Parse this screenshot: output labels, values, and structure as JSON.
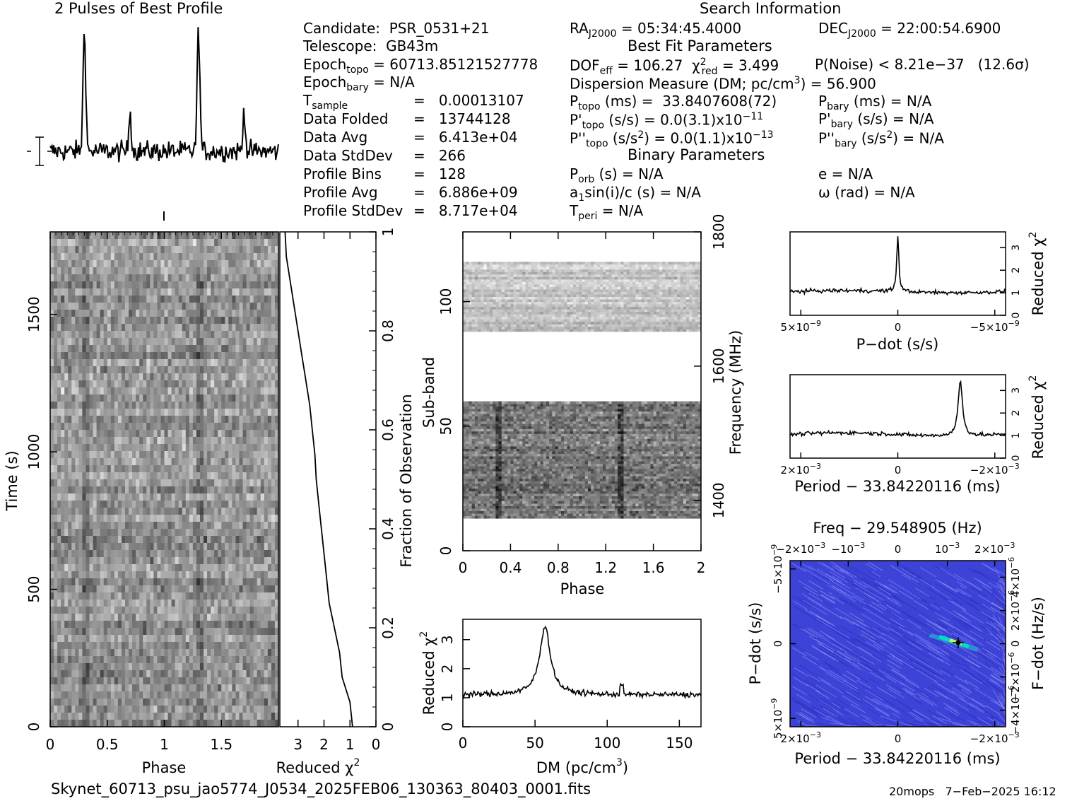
{
  "titles": {
    "profile": "2 Pulses of Best Profile",
    "search": "Search Information",
    "best_fit": "Best Fit Parameters",
    "binary": "Binary Parameters"
  },
  "candidate_info": [
    {
      "label": "Candidate:  PSR_0531+21"
    },
    {
      "label": "Telescope:  GB43m"
    },
    {
      "label": "Epoch",
      "sub": "topo",
      "rest": " = 60713.85121527778"
    },
    {
      "label": "Epoch",
      "sub": "bary",
      "rest": " = N/A"
    },
    {
      "label": "T",
      "sub": "sample",
      "rest": "",
      "value": "=   0.00013107"
    },
    {
      "label": "Data Folded",
      "value": "=   13744128"
    },
    {
      "label": "Data Avg",
      "value": "=   6.413e+04"
    },
    {
      "label": "Data StdDev",
      "value": "=   266"
    },
    {
      "label": "Profile Bins",
      "value": "=   128"
    },
    {
      "label": "Profile Avg",
      "value": "=   6.886e+09"
    },
    {
      "label": "Profile StdDev",
      "value": "=   8.717e+04"
    }
  ],
  "search_info": {
    "ra": "RA",
    "ra_sub": "J2000",
    "ra_val": " = 05:34:45.4000",
    "dec": "DEC",
    "dec_sub": "J2000",
    "dec_val": " = 22:00:54.6900",
    "dof": "DOF",
    "dof_sub": "eff",
    "dof_val": " = 106.27  χ",
    "chi_sub": "red",
    "chi_val": " = 3.499",
    "pnoise": "P(Noise) < 8.21e−37   (12.6σ)",
    "dm_line": "Dispersion Measure (DM; pc/cm",
    "dm_sup": "3",
    "dm_val": ") = 56.900",
    "ptopo": "P",
    "ptopo_sub": "topo",
    "ptopo_val": " (ms) =  33.8407608(72)",
    "pbary": "P",
    "pbary_sub": "bary",
    "pbary_val": " (ms) = N/A",
    "pdtopo": "P'",
    "pdtopo_sub": "topo",
    "pdtopo_val": " (s/s) = 0.0(3.1)x10",
    "pdtopo_exp": "−11",
    "pdbary": "P'",
    "pdbary_sub": "bary",
    "pdbary_val": " (s/s) = N/A",
    "pddtopo": "P''",
    "pddtopo_sub": "topo",
    "pddtopo_val": " (s/s",
    "pddtopo_sup": "2",
    "pddtopo_val2": ") = 0.0(1.1)x10",
    "pddtopo_exp": "−13",
    "pddbary": "P''",
    "pddbary_sub": "bary",
    "pddbary_val": " (s/s",
    "pddbary_sup": "2",
    "pddbary_val2": ") = N/A",
    "porb": "P",
    "porb_sub": "orb",
    "porb_val": " (s) = N/A",
    "ecc": "e = N/A",
    "a1": "a",
    "a1_sub": "1",
    "a1_val": "sin(i)/c (s) = N/A",
    "omega": "ω (rad) = N/A",
    "tperi": "T",
    "tperi_sub": "peri",
    "tperi_val": " = N/A"
  },
  "footer": {
    "filename": "Skynet_60713_psu_jao5774_J0534_2025FEB06_130363_80403_0001.fits",
    "stamp": "20mops   7−Feb−2025 16:12"
  },
  "chart_data": [
    {
      "type": "line",
      "name": "profile",
      "title": "2 Pulses of Best Profile",
      "x_range": [
        0,
        2
      ],
      "peaks": [
        {
          "phase": 0.3,
          "height": 1.0
        },
        {
          "phase": 1.3,
          "height": 1.0
        },
        {
          "phase": 0.7,
          "height": 0.35
        },
        {
          "phase": 1.7,
          "height": 0.35
        }
      ]
    },
    {
      "type": "heatmap",
      "name": "time-phase",
      "xlabel": "Phase",
      "ylabel": "Time (s)",
      "x_ticks": [
        "0",
        "0.5",
        "1",
        "1.5"
      ],
      "y_ticks": [
        "0",
        "500",
        "1000",
        "1500"
      ],
      "xlim": [
        0,
        2
      ],
      "ylim": [
        0,
        1800
      ]
    },
    {
      "type": "line",
      "name": "reduced-chi2-vs-fraction",
      "xlabel": "Reduced χ",
      "xlabel_sup": "2",
      "x_ticks": [
        "3",
        "2",
        "1",
        "0"
      ],
      "right_label": "Fraction of Observation",
      "right_ticks": [
        "0",
        "0.2",
        "0.4",
        "0.6",
        "0.8",
        "1"
      ],
      "points": [
        [
          0,
          0.9
        ],
        [
          0.05,
          1.0
        ],
        [
          0.1,
          1.3
        ],
        [
          0.15,
          1.4
        ],
        [
          0.2,
          1.6
        ],
        [
          0.25,
          1.8
        ],
        [
          0.3,
          1.9
        ],
        [
          0.35,
          2.0
        ],
        [
          0.4,
          2.1
        ],
        [
          0.45,
          2.2
        ],
        [
          0.5,
          2.3
        ],
        [
          0.55,
          2.35
        ],
        [
          0.6,
          2.45
        ],
        [
          0.65,
          2.55
        ],
        [
          0.7,
          2.7
        ],
        [
          0.75,
          2.85
        ],
        [
          0.8,
          3.0
        ],
        [
          0.85,
          3.15
        ],
        [
          0.9,
          3.3
        ],
        [
          0.95,
          3.45
        ],
        [
          1.0,
          3.5
        ]
      ]
    },
    {
      "type": "heatmap",
      "name": "subband-phase",
      "xlabel": "Phase",
      "ylabel": "Sub-band",
      "right_label": "Frequency (MHz)",
      "x_ticks": [
        "0",
        "0.4",
        "0.8",
        "1.2",
        "1.6",
        "2"
      ],
      "y_ticks": [
        "0",
        "50",
        "100"
      ],
      "right_ticks": [
        "1400",
        "1600",
        "1800"
      ],
      "xlim": [
        0,
        2
      ],
      "ylim": [
        0,
        128
      ]
    },
    {
      "type": "line",
      "name": "dm-curve",
      "xlabel": "DM (pc/cm",
      "xlabel_sup": "3",
      "xlabel_end": ")",
      "ylabel": "Reduced χ",
      "ylabel_sup": "2",
      "x_ticks": [
        "0",
        "50",
        "100",
        "150"
      ],
      "y_ticks": [
        "0",
        "1",
        "2",
        "3"
      ],
      "xlim": [
        0,
        165
      ],
      "ylim": [
        0,
        3.7
      ],
      "peak": {
        "x": 56.9,
        "y": 3.45
      }
    },
    {
      "type": "line",
      "name": "pdot-curve",
      "xlabel": "P−dot (s/s)",
      "ylabel": "Reduced χ",
      "ylabel_sup": "2",
      "x_ticks": [
        "5×10",
        "0",
        "−5×10"
      ],
      "x_tick_exp": "−9",
      "y_ticks": [
        "0",
        "1",
        "2",
        "3"
      ],
      "ylim": [
        0,
        3.7
      ],
      "peak": {
        "x": 0,
        "y": 3.5
      }
    },
    {
      "type": "line",
      "name": "period-curve",
      "xlabel": "Period − 33.84220116 (ms)",
      "ylabel": "Reduced χ",
      "ylabel_sup": "2",
      "x_ticks": [
        "2×10",
        "0",
        "−2×10"
      ],
      "x_tick_exp": "−3",
      "y_ticks": [
        "0",
        "1",
        "2",
        "3"
      ],
      "ylim": [
        0,
        3.7
      ],
      "peak": {
        "x": -0.0015,
        "y": 3.5
      }
    },
    {
      "type": "heatmap",
      "name": "period-pdot-plane",
      "title": "Freq − 29.548905 (Hz)",
      "xlabel": "Period − 33.84220116 (ms)",
      "ylabel": "P−dot (s/s)",
      "right_label": "F−dot (Hz/s)",
      "top_ticks": [
        "−2×10",
        "−10",
        "0",
        "10",
        "2×10"
      ],
      "top_tick_exp": "−3",
      "bottom_ticks": [
        "2×10",
        "0",
        "−2×10"
      ],
      "bottom_tick_exp": "−3",
      "left_ticks": [
        "−5×10",
        "0",
        "5×10"
      ],
      "left_tick_exp": "−9",
      "right_ticks": [
        "4×10",
        "2×10",
        "0",
        "−2×10",
        "−4×10"
      ],
      "right_tick_exp": "−6",
      "colors": {
        "background": "#3b3fe0",
        "hot": "#00e0c0",
        "peak": "#000000"
      }
    }
  ]
}
